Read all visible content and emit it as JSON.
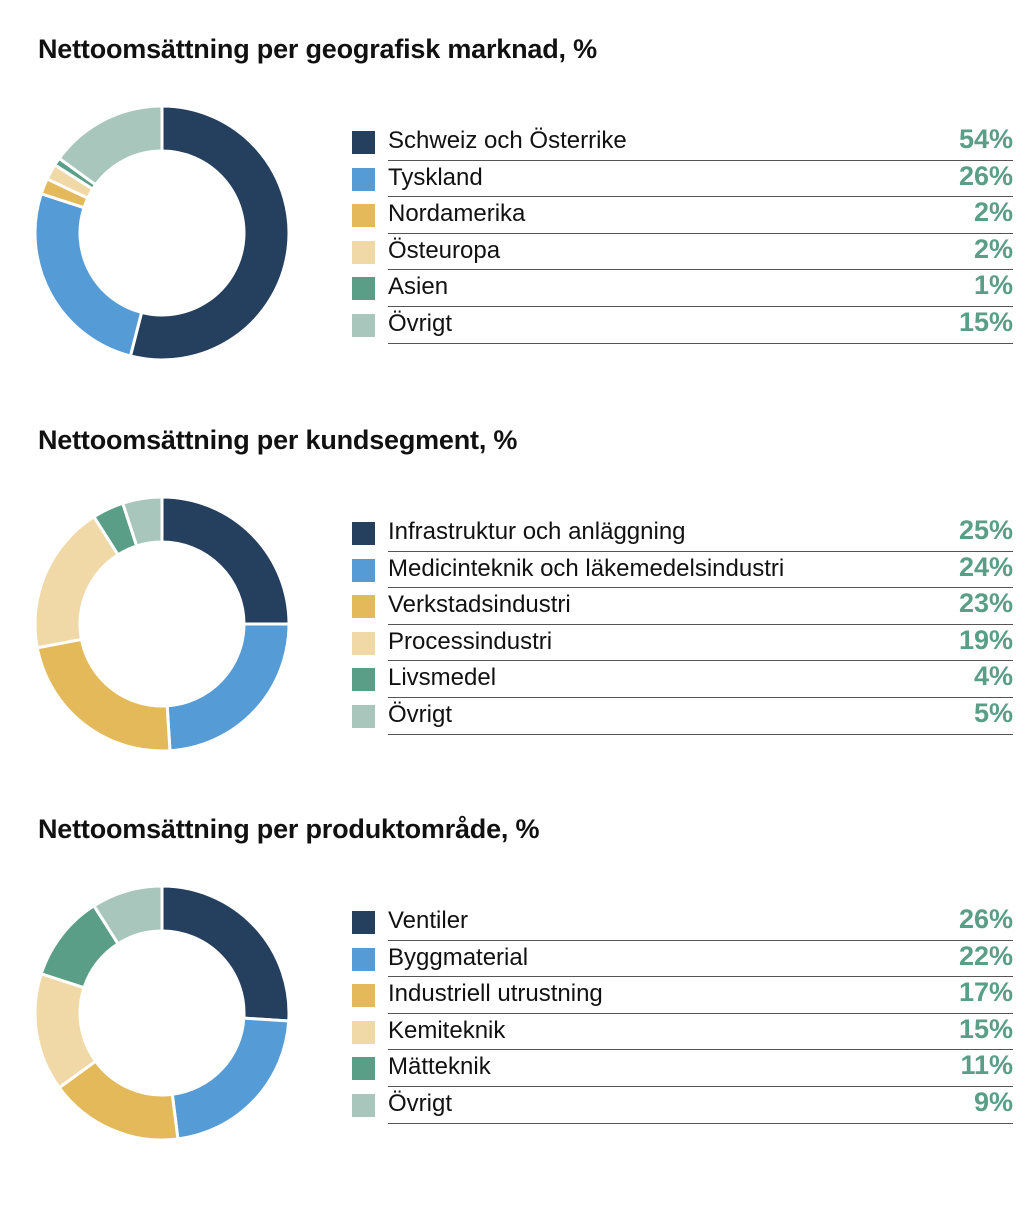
{
  "chart_data": [
    {
      "type": "pie",
      "title": "Nettoomsättning per geografisk marknad, %",
      "categories": [
        "Schweiz och Österrike",
        "Tyskland",
        "Nordamerika",
        "Östeuropa",
        "Asien",
        "Övrigt"
      ],
      "values": [
        54,
        26,
        2,
        2,
        1,
        15
      ],
      "labels": [
        "54%",
        "26%",
        "2%",
        "2%",
        "1%",
        "15%"
      ],
      "colors": [
        "#253f5f",
        "#559bd6",
        "#e3b95a",
        "#f0d9a6",
        "#5a9e87",
        "#a8c6bb"
      ],
      "donut": true,
      "legend": "right"
    },
    {
      "type": "pie",
      "title": "Nettoomsättning per kundsegment, %",
      "categories": [
        "Infrastruktur och anläggning",
        "Medicinteknik och läkemedelsindustri",
        "Verkstadsindustri",
        "Processindustri",
        "Livsmedel",
        "Övrigt"
      ],
      "values": [
        25,
        24,
        23,
        19,
        4,
        5
      ],
      "labels": [
        "25%",
        "24%",
        "23%",
        "19%",
        "4%",
        "5%"
      ],
      "colors": [
        "#253f5f",
        "#559bd6",
        "#e3b95a",
        "#f0d9a6",
        "#5a9e87",
        "#a8c6bb"
      ],
      "donut": true,
      "legend": "right"
    },
    {
      "type": "pie",
      "title": "Nettoomsättning per produktområde, %",
      "categories": [
        "Ventiler",
        "Byggmaterial",
        "Industriell utrustning",
        "Kemiteknik",
        "Mätteknik",
        "Övrigt"
      ],
      "values": [
        26,
        22,
        17,
        15,
        11,
        9
      ],
      "labels": [
        "26%",
        "22%",
        "17%",
        "15%",
        "11%",
        "9%"
      ],
      "colors": [
        "#253f5f",
        "#559bd6",
        "#e3b95a",
        "#f0d9a6",
        "#5a9e87",
        "#a8c6bb"
      ],
      "donut": true,
      "legend": "right"
    }
  ]
}
